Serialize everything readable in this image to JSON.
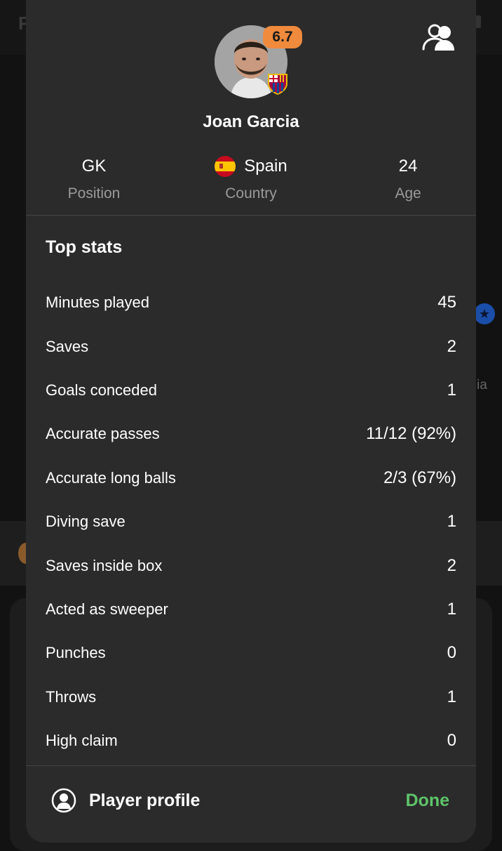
{
  "player": {
    "name": "Joan Garcia",
    "rating": "6.7",
    "rating_color": "#f08a3c",
    "info": [
      {
        "value": "GK",
        "label": "Position"
      },
      {
        "value": "Spain",
        "label": "Country",
        "flag": "spain-flag"
      },
      {
        "value": "24",
        "label": "Age"
      }
    ]
  },
  "stats": {
    "title": "Top stats",
    "rows": [
      {
        "label": "Minutes played",
        "value": "45"
      },
      {
        "label": "Saves",
        "value": "2"
      },
      {
        "label": "Goals conceded",
        "value": "1"
      },
      {
        "label": "Accurate passes",
        "value": "11/12 (92%)"
      },
      {
        "label": "Accurate long balls",
        "value": "2/3 (67%)"
      },
      {
        "label": "Diving save",
        "value": "1"
      },
      {
        "label": "Saves inside box",
        "value": "2"
      },
      {
        "label": "Acted as sweeper",
        "value": "1"
      },
      {
        "label": "Punches",
        "value": "0"
      },
      {
        "label": "Throws",
        "value": "1"
      },
      {
        "label": "High claim",
        "value": "0"
      }
    ]
  },
  "footer": {
    "profile_label": "Player profile",
    "done_label": "Done",
    "done_color": "#5ec46a"
  },
  "background": {
    "header_letter": "F",
    "side_text": "ia"
  },
  "icons": {
    "friend": "add-friend-icon",
    "profile": "person-icon",
    "club": "fc-barcelona-badge-icon"
  }
}
